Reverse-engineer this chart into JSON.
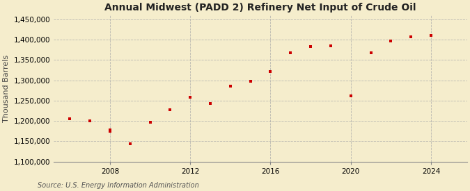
{
  "title": "Annual Midwest (PADD 2) Refinery Net Input of Crude Oil",
  "ylabel": "Thousand Barrels",
  "source": "Source: U.S. Energy Information Administration",
  "background_color": "#f5edcc",
  "marker_color": "#cc0000",
  "grid_color": "#aaaaaa",
  "years": [
    2006,
    2007,
    2008,
    2008,
    2009,
    2010,
    2011,
    2012,
    2013,
    2014,
    2015,
    2016,
    2017,
    2018,
    2019,
    2020,
    2021,
    2022,
    2023,
    2024
  ],
  "values": [
    1205000,
    1200000,
    1175000,
    1178000,
    1143000,
    1197000,
    1228000,
    1258000,
    1243000,
    1285000,
    1298000,
    1322000,
    1368000,
    1383000,
    1385000,
    1262000,
    1368000,
    1397000,
    1408000,
    1410000
  ],
  "xlim": [
    2005.2,
    2025.8
  ],
  "ylim": [
    1100000,
    1460000
  ],
  "yticks": [
    1100000,
    1150000,
    1200000,
    1250000,
    1300000,
    1350000,
    1400000,
    1450000
  ],
  "xticks": [
    2008,
    2012,
    2016,
    2020,
    2024
  ],
  "title_fontsize": 10,
  "label_fontsize": 8,
  "tick_fontsize": 7.5,
  "source_fontsize": 7
}
